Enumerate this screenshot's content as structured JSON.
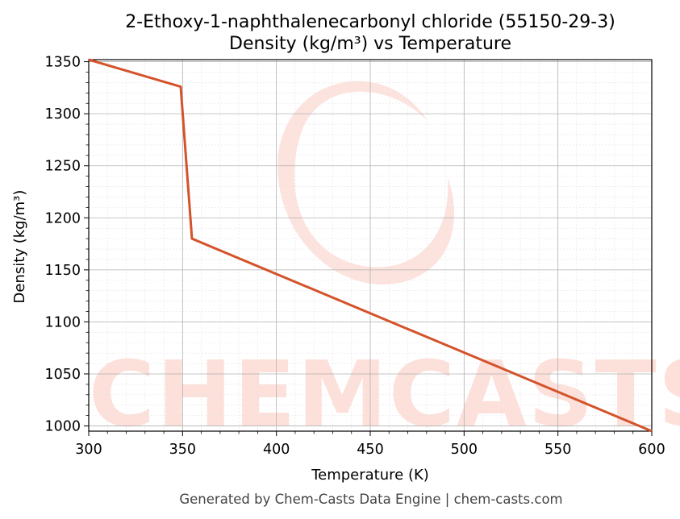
{
  "chart_data": {
    "type": "line",
    "title_line1": "2-Ethoxy-1-naphthalenecarbonyl chloride (55150-29-3)",
    "title_line2": "Density (kg/m³) vs Temperature",
    "xlabel": "Temperature (K)",
    "ylabel": "Density (kg/m³)",
    "xlim": [
      300,
      600
    ],
    "ylim": [
      995,
      1352
    ],
    "xticks": [
      300,
      350,
      400,
      450,
      500,
      550,
      600
    ],
    "yticks": [
      1000,
      1050,
      1100,
      1150,
      1200,
      1250,
      1300,
      1350
    ],
    "grid": true,
    "series": [
      {
        "color": "#d4532a",
        "x": [
          300,
          349,
          355,
          600
        ],
        "y": [
          1352,
          1326,
          1180,
          995
        ]
      }
    ]
  },
  "watermark": {
    "text": "CHEMCASTS",
    "color": "#fde0da"
  },
  "footer": "Generated by Chem-Casts Data Engine | chem-casts.com"
}
